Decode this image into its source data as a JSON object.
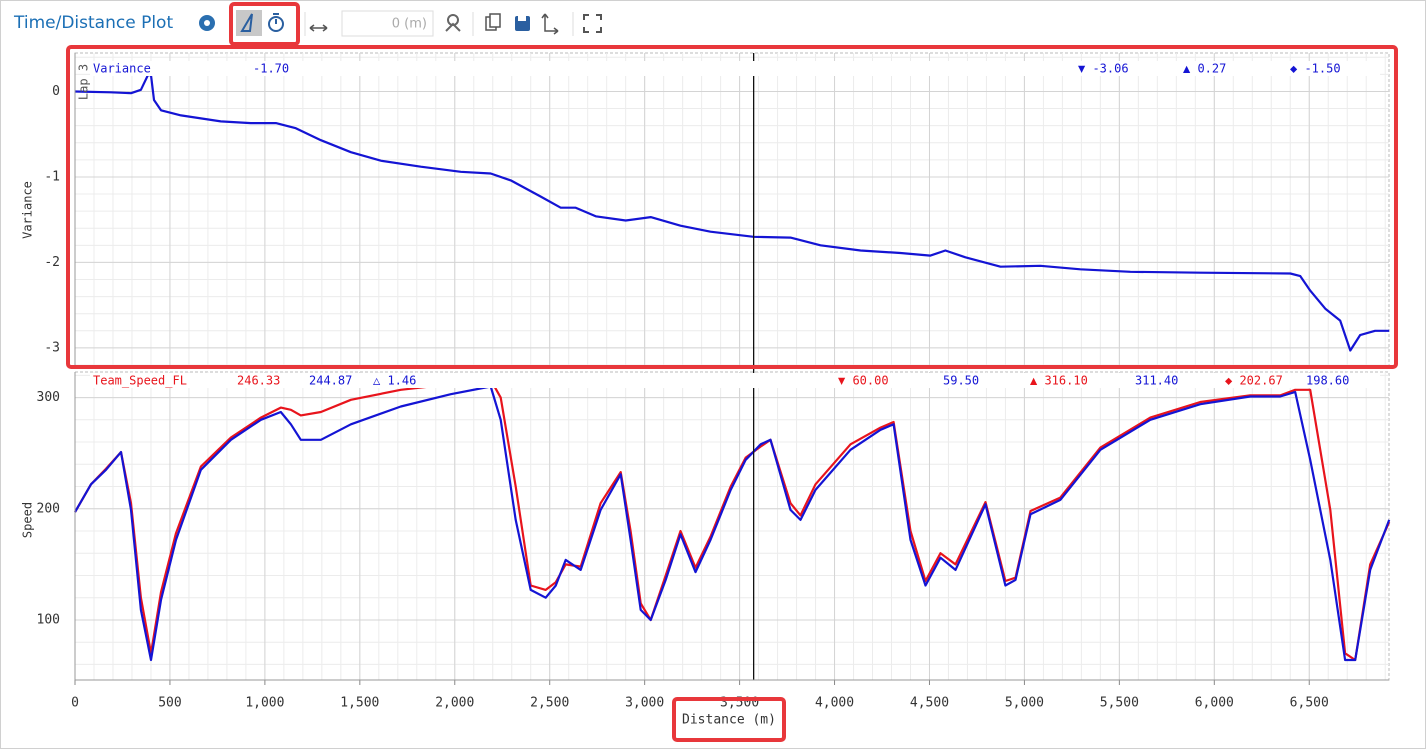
{
  "toolbar": {
    "title": "Time/Distance Plot",
    "distance_input": "0 (m)"
  },
  "cursor_distance": 3574,
  "chart_data": [
    {
      "type": "line",
      "ylabel": "Variance",
      "lap_label": "Lap 3",
      "xlim": [
        0,
        6920
      ],
      "ylim": [
        -3.2,
        0.45
      ],
      "yticks": [
        0,
        -1,
        -2,
        -3
      ],
      "grid": true,
      "readout": {
        "value": "-1.70",
        "min": "▼ -3.06",
        "max": "▲ 0.27",
        "avg": "◆ -1.50"
      },
      "series": [
        {
          "name": "Variance",
          "color": "#1414d4",
          "x": [
            0,
            189,
            295,
            347,
            384,
            400,
            416,
            453,
            558,
            768,
            926,
            1058,
            1163,
            1295,
            1453,
            1611,
            1821,
            2032,
            2189,
            2295,
            2453,
            2558,
            2637,
            2742,
            2900,
            3032,
            3189,
            3347,
            3574,
            3768,
            3926,
            4137,
            4347,
            4505,
            4584,
            4689,
            4874,
            5084,
            5295,
            5558,
            5926,
            6400,
            6453,
            6505,
            6584,
            6663,
            6716,
            6768,
            6847,
            6921
          ],
          "values": [
            0,
            -0.01,
            -0.02,
            0.02,
            0.19,
            0.19,
            -0.1,
            -0.22,
            -0.28,
            -0.35,
            -0.37,
            -0.37,
            -0.43,
            -0.57,
            -0.71,
            -0.81,
            -0.88,
            -0.94,
            -0.96,
            -1.04,
            -1.23,
            -1.36,
            -1.36,
            -1.46,
            -1.51,
            -1.47,
            -1.57,
            -1.64,
            -1.7,
            -1.71,
            -1.8,
            -1.86,
            -1.89,
            -1.92,
            -1.86,
            -1.94,
            -2.05,
            -2.04,
            -2.08,
            -2.11,
            -2.12,
            -2.13,
            -2.16,
            -2.33,
            -2.54,
            -2.68,
            -3.03,
            -2.85,
            -2.8,
            -2.8
          ]
        }
      ]
    },
    {
      "type": "line",
      "ylabel": "Speed",
      "xlabel": "Distance (m)",
      "xlim": [
        0,
        6920
      ],
      "ylim": [
        46,
        323
      ],
      "yticks": [
        100,
        200,
        300
      ],
      "grid": true,
      "xticks": [
        0,
        500,
        {
          "value": 1000,
          "label": "1,000"
        },
        {
          "value": 1500,
          "label": "1,500"
        },
        {
          "value": 2000,
          "label": "2,000"
        },
        {
          "value": 2500,
          "label": "2,500"
        },
        {
          "value": 3000,
          "label": "3,000"
        },
        {
          "value": 3500,
          "label": "3,500"
        },
        {
          "value": 4000,
          "label": "4,000"
        },
        {
          "value": 4500,
          "label": "4,500"
        },
        {
          "value": 5000,
          "label": "5,000"
        },
        {
          "value": 5500,
          "label": "5,500"
        },
        {
          "value": 6000,
          "label": "6,000"
        },
        {
          "value": 6500,
          "label": "6,500"
        }
      ],
      "readout": {
        "cursor_red": "246.33",
        "cursor_blue": "244.87",
        "delta": "△ 1.46",
        "min_red": "▼ 60.00",
        "min_blue": "59.50",
        "max_red": "▲ 316.10",
        "max_blue": "311.40",
        "avg_red": "◆ 202.67",
        "avg_blue": "198.60"
      },
      "x": [
        0,
        84,
        163,
        242,
        295,
        347,
        400,
        453,
        532,
        663,
        821,
        979,
        1084,
        1137,
        1189,
        1295,
        1453,
        1716,
        1979,
        2189,
        2242,
        2321,
        2400,
        2479,
        2532,
        2584,
        2663,
        2768,
        2874,
        2926,
        2979,
        3032,
        3111,
        3189,
        3268,
        3347,
        3453,
        3532,
        3611,
        3663,
        3768,
        3821,
        3900,
        4084,
        4242,
        4311,
        4400,
        4479,
        4558,
        4637,
        4795,
        4900,
        4953,
        5032,
        5189,
        5400,
        5663,
        5926,
        6189,
        6347,
        6426,
        6505,
        6611,
        6689,
        6742,
        6821,
        6921
      ],
      "series": [
        {
          "name": "Team_Speed_FL",
          "color": "#e8141c",
          "values": [
            197,
            222,
            236,
            251,
            205,
            120,
            70,
            125,
            178,
            238,
            264,
            282,
            291,
            289,
            284,
            287,
            298,
            307,
            312,
            316,
            300,
            220,
            131,
            127,
            134,
            150,
            148,
            205,
            233,
            180,
            115,
            100,
            140,
            180,
            147,
            175,
            220,
            246,
            256,
            262,
            205,
            194,
            222,
            258,
            273,
            278,
            180,
            135,
            160,
            150,
            206,
            135,
            138,
            198,
            210,
            255,
            282,
            296,
            302,
            302,
            307,
            307,
            199,
            70,
            64,
            150,
            188
          ]
        },
        {
          "color": "#1414d4",
          "values": [
            197,
            222,
            235,
            251,
            199,
            109,
            64,
            118,
            172,
            235,
            262,
            280,
            287,
            276,
            262,
            262,
            276,
            292,
            303,
            310,
            280,
            190,
            127,
            120,
            131,
            154,
            145,
            199,
            231,
            172,
            109,
            100,
            136,
            177,
            143,
            172,
            217,
            244,
            258,
            262,
            199,
            190,
            217,
            253,
            271,
            276,
            172,
            131,
            156,
            145,
            204,
            131,
            136,
            195,
            208,
            253,
            280,
            294,
            301,
            301,
            305,
            244,
            154,
            64,
            64,
            145,
            190
          ]
        }
      ]
    }
  ]
}
